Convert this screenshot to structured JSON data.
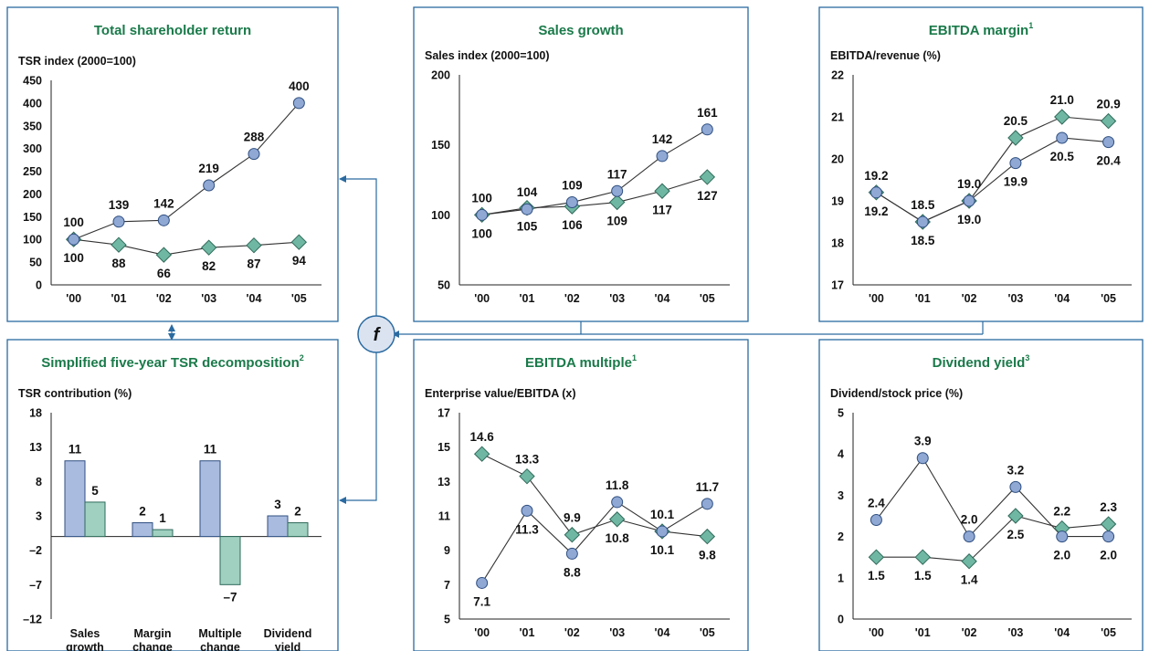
{
  "colors": {
    "border": "#2a6aa0",
    "title": "#1a7a4a",
    "circle_fill": "#8fa8d4",
    "diamond_fill": "#6fb7a2",
    "bar_a": "#a9bbdf",
    "bar_b": "#9fd0c0",
    "arrow": "#2a6aa0"
  },
  "function_symbol": "f",
  "chart_data": [
    {
      "id": "tsr",
      "type": "line",
      "title": "Total shareholder return",
      "title_sup": "",
      "ylabel": "TSR index (2000=100)",
      "ylim": [
        0,
        450
      ],
      "yticks": [
        "0",
        "50",
        "100",
        "150",
        "200",
        "250",
        "300",
        "350",
        "400",
        "450"
      ],
      "x": [
        "'00",
        "'01",
        "'02",
        "'03",
        "'04",
        "'05"
      ],
      "series": [
        {
          "marker": "circle",
          "values": [
            100,
            139,
            142,
            219,
            288,
            400
          ],
          "labels": [
            "100",
            "139",
            "142",
            "219",
            "288",
            "400"
          ],
          "label_pos": "above"
        },
        {
          "marker": "diamond",
          "values": [
            100,
            88,
            66,
            82,
            87,
            94
          ],
          "labels": [
            "100",
            "88",
            "66",
            "82",
            "87",
            "94"
          ],
          "label_pos": "below"
        }
      ]
    },
    {
      "id": "sales",
      "type": "line",
      "title": "Sales growth",
      "title_sup": "",
      "ylabel": "Sales index (2000=100)",
      "ylim": [
        50,
        200
      ],
      "yticks": [
        "50",
        "100",
        "150",
        "200"
      ],
      "x": [
        "'00",
        "'01",
        "'02",
        "'03",
        "'04",
        "'05"
      ],
      "series": [
        {
          "marker": "circle",
          "values": [
            100,
            104,
            109,
            117,
            142,
            161
          ],
          "labels": [
            "100",
            "104",
            "109",
            "117",
            "142",
            "161"
          ],
          "label_pos": "above"
        },
        {
          "marker": "diamond",
          "values": [
            100,
            105,
            106,
            109,
            117,
            127
          ],
          "labels": [
            "100",
            "105",
            "106",
            "109",
            "117",
            "127"
          ],
          "label_pos": "below"
        }
      ]
    },
    {
      "id": "margin",
      "type": "line",
      "title": "EBITDA margin",
      "title_sup": "1",
      "ylabel": "EBITDA/revenue (%)",
      "ylim": [
        17,
        22
      ],
      "yticks": [
        "17",
        "18",
        "19",
        "20",
        "21",
        "22"
      ],
      "x": [
        "'00",
        "'01",
        "'02",
        "'03",
        "'04",
        "'05"
      ],
      "series": [
        {
          "marker": "circle",
          "values": [
            19.2,
            18.5,
            19.0,
            19.9,
            20.5,
            20.4
          ],
          "labels": [
            "19.2",
            "18.5",
            "19.0",
            "19.9",
            "20.5",
            "20.4"
          ],
          "label_pos": "below"
        },
        {
          "marker": "diamond",
          "values": [
            19.2,
            18.5,
            19.0,
            20.5,
            21.0,
            20.9
          ],
          "labels": [
            "19.2",
            "18.5",
            "19.0",
            "20.5",
            "21.0",
            "20.9"
          ],
          "label_pos": "above"
        }
      ]
    },
    {
      "id": "decomp",
      "type": "bar",
      "title": "Simplified five-year TSR decomposition",
      "title_sup": "2",
      "ylabel": "TSR contribution (%)",
      "ylim": [
        -12,
        18
      ],
      "yticks": [
        "–12",
        "–7",
        "–2",
        "3",
        "8",
        "13",
        "18"
      ],
      "categories": [
        [
          "Sales",
          "growth"
        ],
        [
          "Margin",
          "change"
        ],
        [
          "Multiple",
          "change"
        ],
        [
          "Dividend",
          "yield"
        ]
      ],
      "series": [
        {
          "values": [
            11,
            2,
            11,
            3
          ],
          "labels": [
            "11",
            "2",
            "11",
            "3"
          ]
        },
        {
          "values": [
            5,
            1,
            -7,
            2
          ],
          "labels": [
            "5",
            "1",
            "–7",
            "2"
          ]
        }
      ]
    },
    {
      "id": "multiple",
      "type": "line",
      "title": "EBITDA multiple",
      "title_sup": "1",
      "ylabel": "Enterprise value/EBITDA (x)",
      "ylim": [
        5,
        17
      ],
      "yticks": [
        "5",
        "7",
        "9",
        "11",
        "13",
        "15",
        "17"
      ],
      "x": [
        "'00",
        "'01",
        "'02",
        "'03",
        "'04",
        "'05"
      ],
      "series": [
        {
          "marker": "circle",
          "values": [
            7.1,
            11.3,
            8.8,
            11.8,
            10.1,
            11.7
          ],
          "labels": [
            "7.1",
            "11.3",
            "8.8",
            "11.8",
            "10.1",
            "11.7"
          ],
          "label_pos": [
            "below",
            "below",
            "below",
            "above",
            "below",
            "above"
          ]
        },
        {
          "marker": "diamond",
          "values": [
            14.6,
            13.3,
            9.9,
            10.8,
            10.1,
            9.8
          ],
          "labels": [
            "14.6",
            "13.3",
            "9.9",
            "10.8",
            "10.1",
            "9.8"
          ],
          "label_pos": [
            "above",
            "above",
            "above",
            "below",
            "above",
            "below"
          ]
        }
      ]
    },
    {
      "id": "dividend",
      "type": "line",
      "title": "Dividend yield",
      "title_sup": "3",
      "ylabel": "Dividend/stock price (%)",
      "ylim": [
        0,
        5
      ],
      "yticks": [
        "0",
        "1",
        "2",
        "3",
        "4",
        "5"
      ],
      "x": [
        "'00",
        "'01",
        "'02",
        "'03",
        "'04",
        "'05"
      ],
      "series": [
        {
          "marker": "circle",
          "values": [
            2.4,
            3.9,
            2.0,
            3.2,
            2.0,
            2.0
          ],
          "labels": [
            "2.4",
            "3.9",
            "2.0",
            "3.2",
            "2.0",
            "2.0"
          ],
          "label_pos": [
            "above",
            "above",
            "above",
            "above",
            "below",
            "below"
          ]
        },
        {
          "marker": "diamond",
          "values": [
            1.5,
            1.5,
            1.4,
            2.5,
            2.2,
            2.3
          ],
          "labels": [
            "1.5",
            "1.5",
            "1.4",
            "2.5",
            "2.2",
            "2.3"
          ],
          "label_pos": [
            "below",
            "below",
            "below",
            "below",
            "above",
            "above"
          ]
        }
      ]
    }
  ]
}
